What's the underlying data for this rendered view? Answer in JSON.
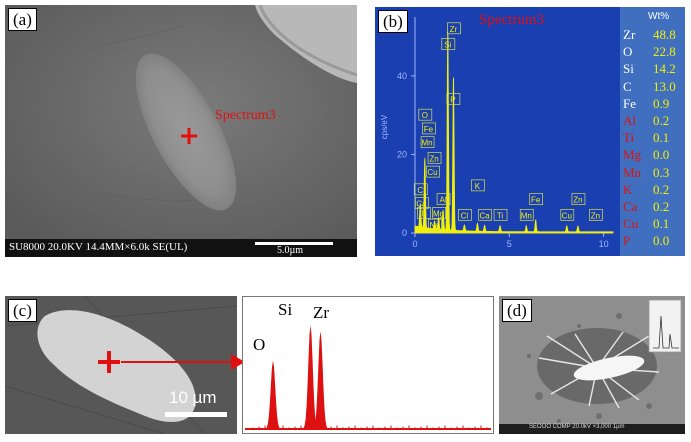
{
  "panel_a": {
    "label": "(a)",
    "spectrum_label": "Spectrum3",
    "info_bar": "SU8000 20.0KV 14.4MM×6.0k SE(UL)",
    "scale_label": "5.0µm"
  },
  "panel_b": {
    "label": "(b)",
    "spectrum_label": "Spectrum3",
    "y_axis_label": "cps/eV",
    "y_ticks": [
      "0",
      "20",
      "40"
    ],
    "x_ticks": [
      "0",
      "5",
      "10"
    ],
    "wt_header": "Wt%",
    "composition": [
      {
        "el": "Zr",
        "wt": "48.8",
        "color": "#ffffff"
      },
      {
        "el": "O",
        "wt": "22.8",
        "color": "#ffffff"
      },
      {
        "el": "Si",
        "wt": "14.2",
        "color": "#ffffff"
      },
      {
        "el": "C",
        "wt": "13.0",
        "color": "#ffffff"
      },
      {
        "el": "Fe",
        "wt": "0.9",
        "color": "#ffffff"
      },
      {
        "el": "Al",
        "wt": "0.2",
        "color": "#e01010"
      },
      {
        "el": "Ti",
        "wt": "0.1",
        "color": "#e01010"
      },
      {
        "el": "Mg",
        "wt": "0.0",
        "color": "#e01010"
      },
      {
        "el": "Mn",
        "wt": "0.3",
        "color": "#e01010"
      },
      {
        "el": "K",
        "wt": "0.2",
        "color": "#e01010"
      },
      {
        "el": "Ca",
        "wt": "0.2",
        "color": "#e01010"
      },
      {
        "el": "Cu",
        "wt": "0.1",
        "color": "#e01010"
      },
      {
        "el": "P",
        "wt": "0.0",
        "color": "#e01010"
      }
    ],
    "peak_tags": [
      {
        "t": "Zr",
        "x": 2.04,
        "c": 52
      },
      {
        "t": "Si",
        "x": 1.74,
        "c": 48
      },
      {
        "t": "P",
        "x": 2.01,
        "c": 34
      },
      {
        "t": "O",
        "x": 0.52,
        "c": 30
      },
      {
        "t": "Fe",
        "x": 0.71,
        "c": 26.5
      },
      {
        "t": "Mn",
        "x": 0.64,
        "c": 23
      },
      {
        "t": "Zn",
        "x": 1.01,
        "c": 19
      },
      {
        "t": "Cu",
        "x": 0.93,
        "c": 15.5
      },
      {
        "t": "C",
        "x": 0.28,
        "c": 11
      },
      {
        "t": "Ca",
        "x": 0.34,
        "c": 7.5
      },
      {
        "t": "Al",
        "x": 1.49,
        "c": 8.5
      },
      {
        "t": "Ti",
        "x": 0.45,
        "c": 5
      },
      {
        "t": "Mg",
        "x": 1.25,
        "c": 5
      },
      {
        "t": "Na",
        "x": 1.04,
        "c": 2
      },
      {
        "t": "K",
        "x": 3.31,
        "c": 12
      },
      {
        "t": "Cl",
        "x": 2.62,
        "c": 4.5
      },
      {
        "t": "Ca",
        "x": 3.69,
        "c": 4.5
      },
      {
        "t": "Ti",
        "x": 4.51,
        "c": 4.5
      },
      {
        "t": "Mn",
        "x": 5.9,
        "c": 4.5
      },
      {
        "t": "Fe",
        "x": 6.4,
        "c": 8.5
      },
      {
        "t": "Cu",
        "x": 8.05,
        "c": 4.5
      },
      {
        "t": "Zn",
        "x": 8.64,
        "c": 8.5
      },
      {
        "t": "Zn",
        "x": 9.57,
        "c": 4.5
      }
    ]
  },
  "panel_c": {
    "label": "(c)",
    "scale_label": "10 µm",
    "peak_labels": [
      "O",
      "Si",
      "Zr"
    ]
  },
  "panel_d": {
    "label": "(d)",
    "info_bar": "SEOOO COMP 20.0kV ×3,000 1µm"
  },
  "chart_data": [
    {
      "type": "line",
      "title": "",
      "annotation": "Spectrum3",
      "xlabel": "",
      "ylabel": "cps/eV",
      "xlim": [
        0,
        10.5
      ],
      "ylim": [
        0,
        55
      ],
      "x_ticks": [
        0,
        5,
        10
      ],
      "y_ticks": [
        0,
        20,
        40
      ],
      "peaks": [
        {
          "element": "C",
          "x": 0.28,
          "y": 6
        },
        {
          "element": "O",
          "x": 0.52,
          "y": 18
        },
        {
          "element": "Na",
          "x": 1.04,
          "y": 2
        },
        {
          "element": "Mg",
          "x": 1.25,
          "y": 3
        },
        {
          "element": "Al",
          "x": 1.49,
          "y": 5
        },
        {
          "element": "Si",
          "x": 1.74,
          "y": 52
        },
        {
          "element": "Zr",
          "x": 2.04,
          "y": 40
        },
        {
          "element": "Cl",
          "x": 2.62,
          "y": 1.5
        },
        {
          "element": "K",
          "x": 3.31,
          "y": 2
        },
        {
          "element": "Ca",
          "x": 3.69,
          "y": 1.5
        },
        {
          "element": "Ti",
          "x": 4.51,
          "y": 1.5
        },
        {
          "element": "Mn",
          "x": 5.9,
          "y": 1.5
        },
        {
          "element": "Fe",
          "x": 6.4,
          "y": 3
        },
        {
          "element": "Cu",
          "x": 8.05,
          "y": 1.5
        },
        {
          "element": "Zn",
          "x": 8.64,
          "y": 1.5
        }
      ]
    },
    {
      "type": "area",
      "title": "",
      "xlabel": "",
      "ylabel": "",
      "peaks": [
        {
          "element": "O",
          "position": 0.12,
          "height": 0.58
        },
        {
          "element": "Si",
          "position": 0.27,
          "height": 0.88
        },
        {
          "element": "Zr",
          "position": 0.31,
          "height": 0.83
        }
      ]
    }
  ],
  "colors": {
    "spectrum_blue": "#1a3fb0",
    "table_blue": "#3f6fbe",
    "peak_yellow": "#f2f00a",
    "marker_red": "#e01010",
    "eds_red": "#dd1111"
  }
}
